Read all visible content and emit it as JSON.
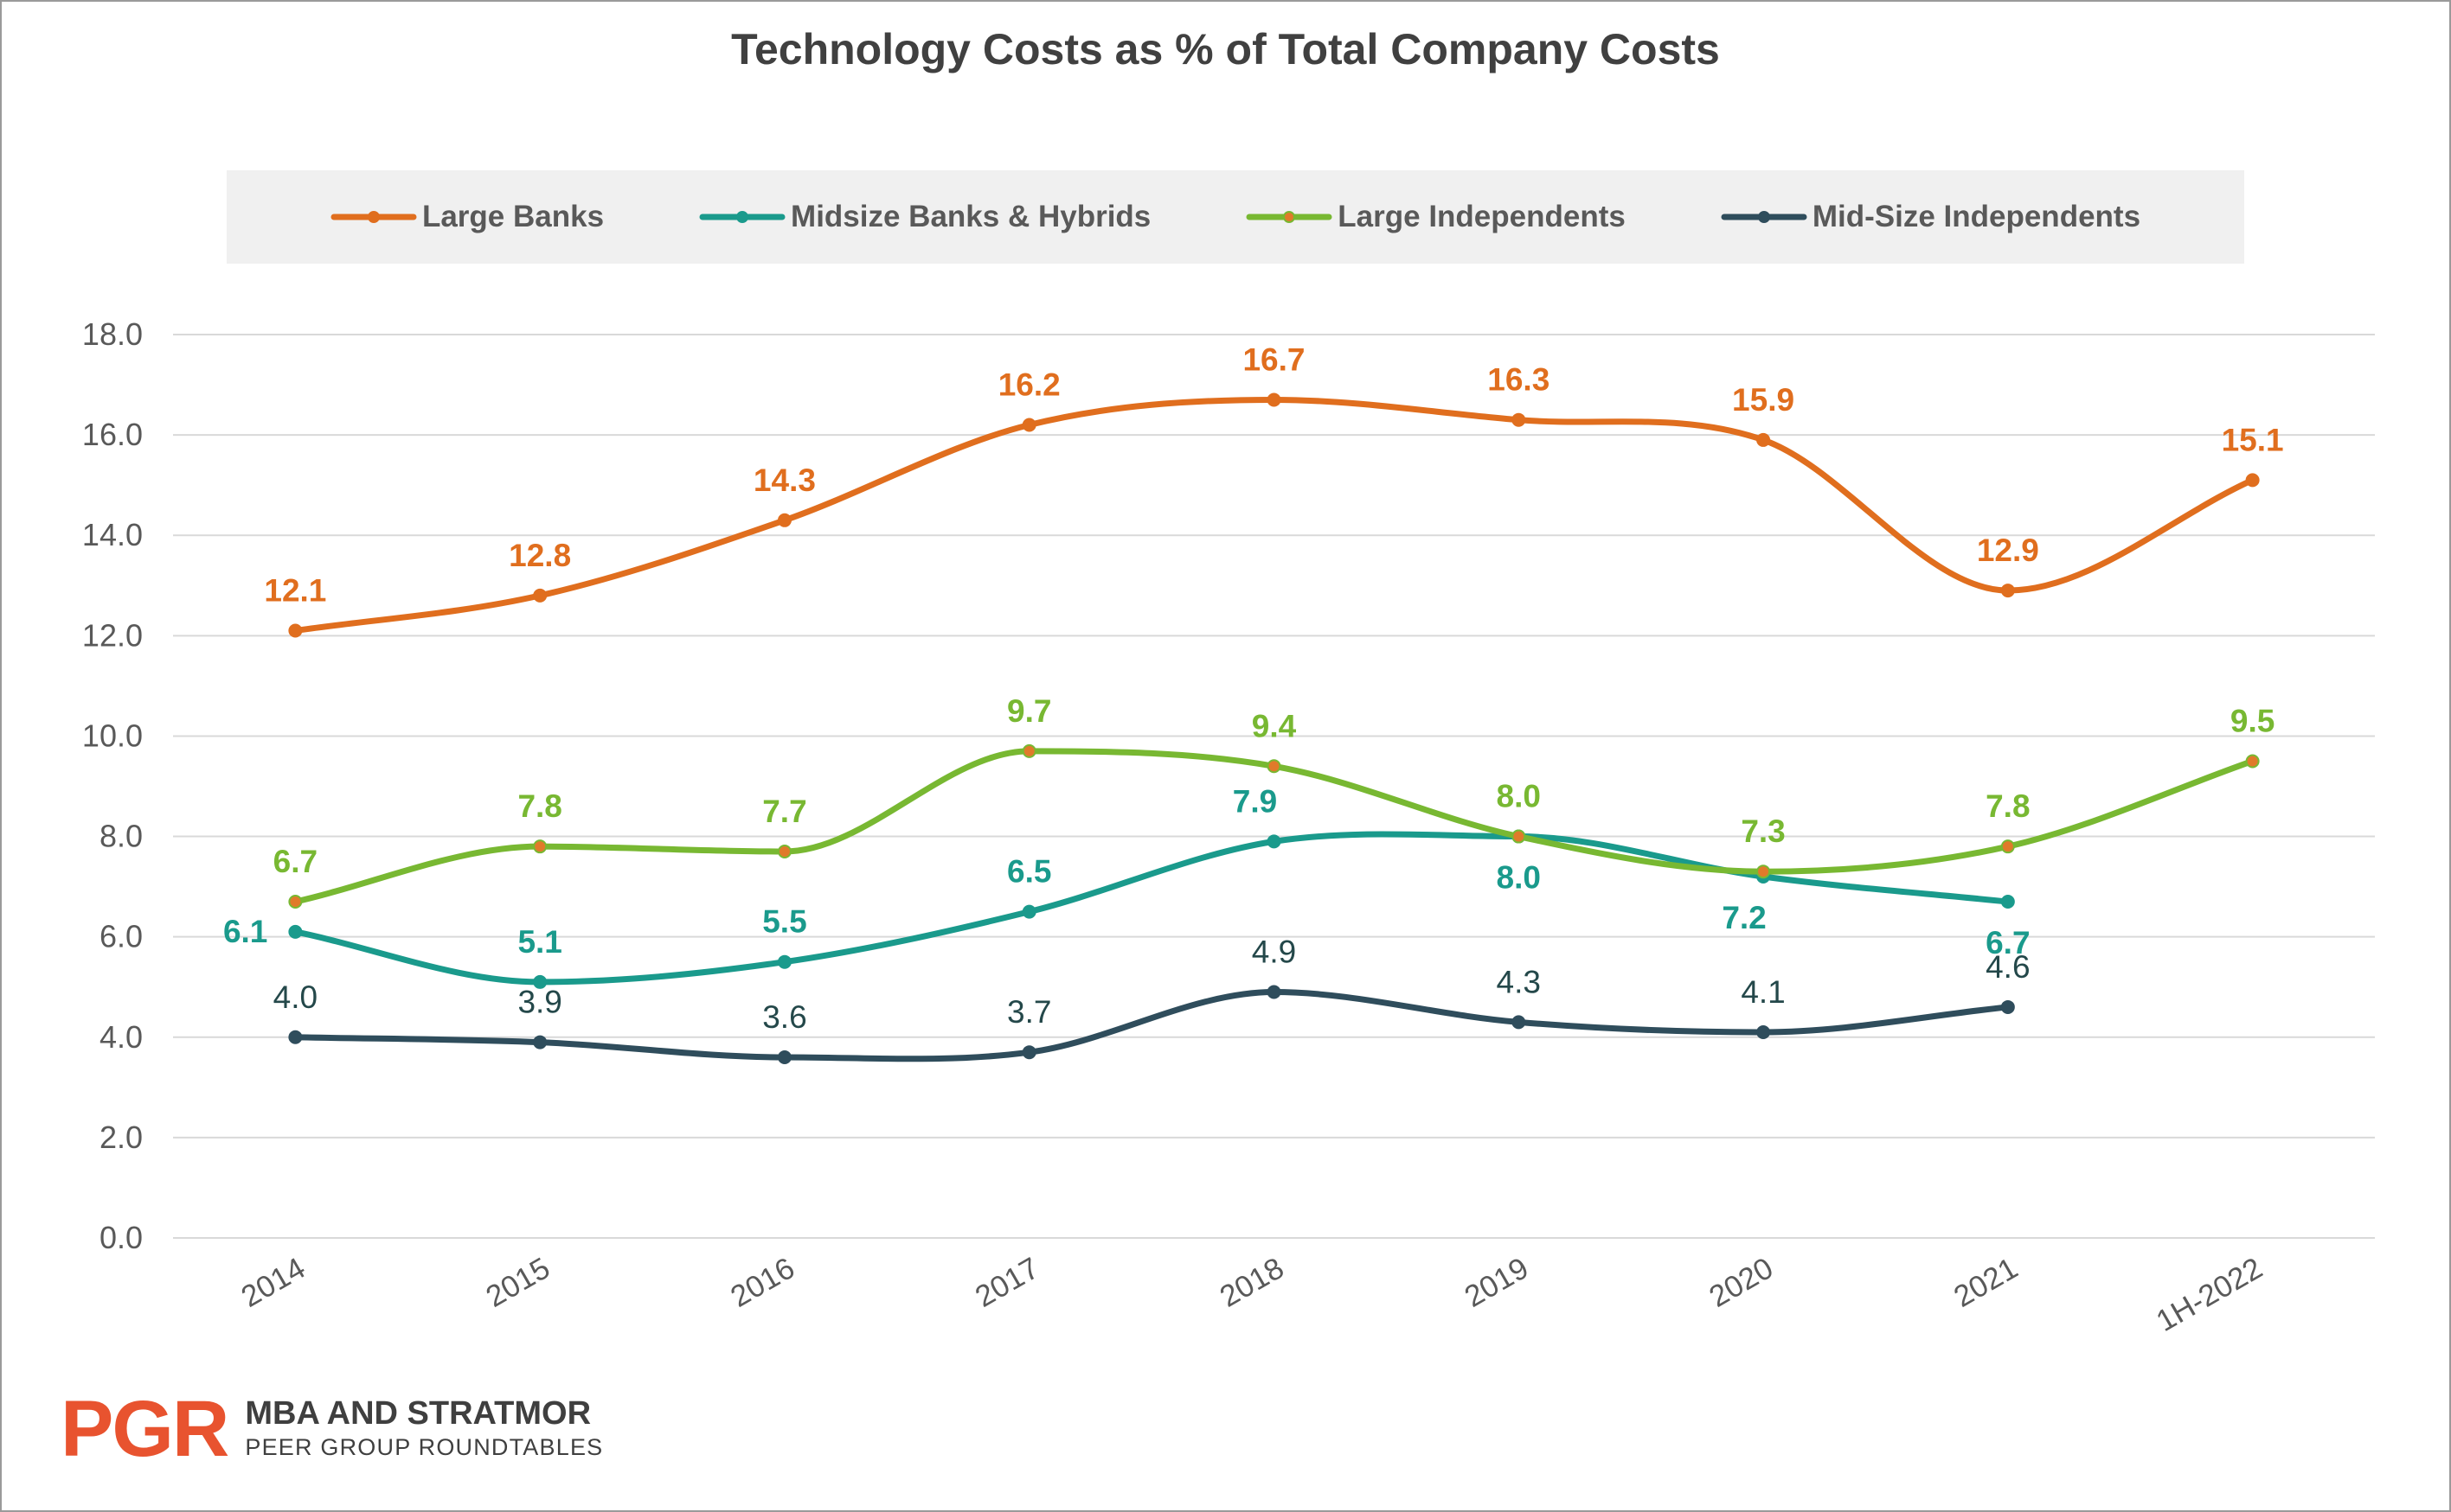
{
  "chart_data": {
    "type": "line",
    "title": "Technology Costs as % of Total Company Costs",
    "categories": [
      "2014",
      "2015",
      "2016",
      "2017",
      "2018",
      "2019",
      "2020",
      "2021",
      "1H-2022"
    ],
    "ylim": [
      0,
      18
    ],
    "yticks": [
      "0.0",
      "2.0",
      "4.0",
      "6.0",
      "8.0",
      "10.0",
      "12.0",
      "14.0",
      "16.0",
      "18.0"
    ],
    "grid": true,
    "smooth": true,
    "legend_position": "top",
    "series": [
      {
        "name": "Large Banks",
        "color": "#e06e1e",
        "marker_color": "#e06e1e",
        "label_color": "#e06e1e",
        "label_bold": true,
        "values": [
          12.1,
          12.8,
          14.3,
          16.2,
          16.7,
          16.3,
          15.9,
          12.9,
          15.1
        ],
        "labels": [
          "12.1",
          "12.8",
          "14.3",
          "16.2",
          "16.7",
          "16.3",
          "15.9",
          "12.9",
          "15.1"
        ],
        "label_pos": [
          "above",
          "above",
          "above",
          "above",
          "above",
          "above",
          "above",
          "above",
          "above"
        ]
      },
      {
        "name": "Midsize Banks & Hybrids",
        "color": "#1a9a8c",
        "marker_color": "#1a9a8c",
        "label_color": "#1a9a8c",
        "label_bold": true,
        "values": [
          6.1,
          5.1,
          5.5,
          6.5,
          7.9,
          8.0,
          7.2,
          6.7,
          null
        ],
        "labels": [
          "6.1",
          "5.1",
          "5.5",
          "6.5",
          "7.9",
          "8.0",
          "7.2",
          "6.7",
          ""
        ],
        "label_pos": [
          "left",
          "above",
          "above",
          "above",
          "above-left",
          "below",
          "below-left",
          "below",
          "above"
        ]
      },
      {
        "name": "Large Independents",
        "color": "#78b832",
        "marker_color": "#e07a2a",
        "label_color": "#78b832",
        "label_bold": true,
        "values": [
          6.7,
          7.8,
          7.7,
          9.7,
          9.4,
          8.0,
          7.3,
          7.8,
          9.5
        ],
        "labels": [
          "6.7",
          "7.8",
          "7.7",
          "9.7",
          "9.4",
          "8.0",
          "7.3",
          "7.8",
          "9.5"
        ],
        "label_pos": [
          "above",
          "above",
          "above",
          "above",
          "above",
          "above",
          "above",
          "above",
          "above"
        ]
      },
      {
        "name": "Mid-Size Independents",
        "color": "#2f4d5c",
        "marker_color": "#2f4d5c",
        "label_color": "#24484a",
        "label_bold": false,
        "values": [
          4.0,
          3.9,
          3.6,
          3.7,
          4.9,
          4.3,
          4.1,
          4.6,
          null
        ],
        "labels": [
          "4.0",
          "3.9",
          "3.6",
          "3.7",
          "4.9",
          "4.3",
          "4.1",
          "4.6",
          ""
        ],
        "label_pos": [
          "above",
          "above",
          "above",
          "above",
          "above",
          "above",
          "above",
          "above",
          "above"
        ]
      }
    ]
  },
  "footer": {
    "logo_mark": "PGR",
    "line1": "MBA AND STRATMOR",
    "line2": "PEER GROUP ROUNDTABLES"
  }
}
